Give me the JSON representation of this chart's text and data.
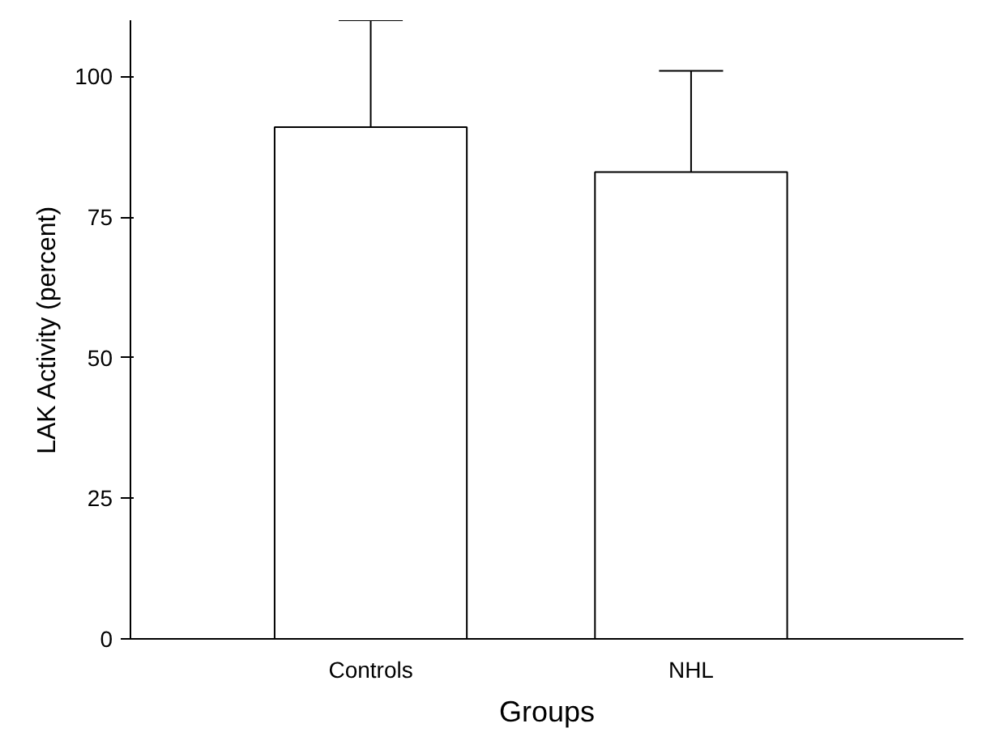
{
  "chart_data": {
    "type": "bar",
    "xlabel": "Groups",
    "ylabel": "LAK Activity (percent)",
    "categories": [
      "Controls",
      "NHL"
    ],
    "values": [
      91,
      83
    ],
    "errors": [
      [
        91,
        110
      ],
      [
        83,
        101
      ]
    ],
    "color": "#ffffff",
    "ylim": [
      0,
      110
    ],
    "yticks": [
      0,
      25,
      50,
      75,
      100
    ],
    "grid": false
  }
}
